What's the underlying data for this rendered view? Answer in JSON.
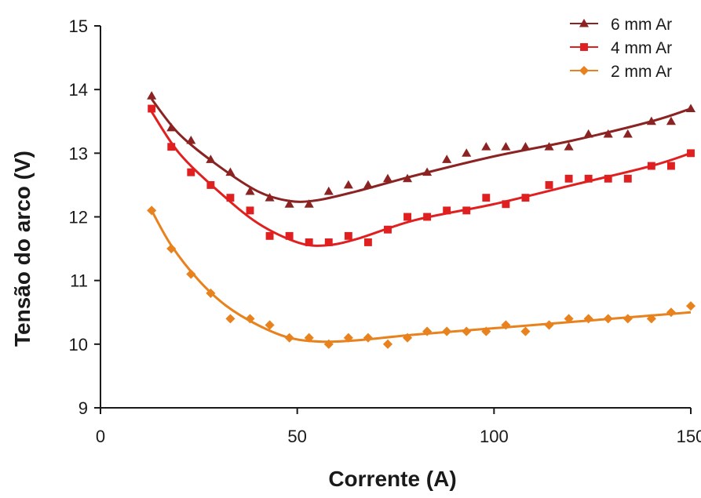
{
  "chart_data": {
    "type": "scatter",
    "xlabel": "Corrente (A)",
    "ylabel": "Tensão do arco (V)",
    "xlim": [
      0,
      150
    ],
    "ylim": [
      9,
      15
    ],
    "xticks": [
      0,
      50,
      100,
      150
    ],
    "yticks": [
      9,
      10,
      11,
      12,
      13,
      14,
      15
    ],
    "xtick_labels": [
      "0",
      "50",
      "100",
      "150"
    ],
    "ytick_labels": [
      "9",
      "10",
      "11",
      "12",
      "13",
      "14",
      "15"
    ],
    "grid": false,
    "legend_position": "top-right",
    "series": [
      {
        "name": "6 mm Ar",
        "color": "#8b2323",
        "marker": "triangle",
        "x": [
          13,
          18,
          23,
          28,
          33,
          38,
          43,
          48,
          53,
          58,
          63,
          68,
          73,
          78,
          83,
          88,
          93,
          98,
          103,
          108,
          114,
          119,
          124,
          129,
          134,
          140,
          145,
          150
        ],
        "y": [
          13.9,
          13.4,
          13.2,
          12.9,
          12.7,
          12.4,
          12.3,
          12.2,
          12.2,
          12.4,
          12.5,
          12.5,
          12.6,
          12.6,
          12.7,
          12.9,
          13.0,
          13.1,
          13.1,
          13.1,
          13.1,
          13.1,
          13.3,
          13.3,
          13.3,
          13.5,
          13.5,
          13.7
        ],
        "fit_x": [
          13,
          20,
          30,
          40,
          48,
          55,
          65,
          80,
          100,
          120,
          140,
          150
        ],
        "fit_y": [
          13.85,
          13.3,
          12.8,
          12.4,
          12.25,
          12.26,
          12.4,
          12.65,
          12.95,
          13.2,
          13.5,
          13.7
        ]
      },
      {
        "name": "4 mm Ar",
        "color": "#e02020",
        "marker": "square",
        "x": [
          13,
          18,
          23,
          28,
          33,
          38,
          43,
          48,
          53,
          58,
          63,
          68,
          73,
          78,
          83,
          88,
          93,
          98,
          103,
          108,
          114,
          119,
          124,
          129,
          134,
          140,
          145,
          150
        ],
        "y": [
          13.7,
          13.1,
          12.7,
          12.5,
          12.3,
          12.1,
          11.7,
          11.7,
          11.6,
          11.6,
          11.7,
          11.6,
          11.8,
          12.0,
          12.0,
          12.1,
          12.1,
          12.3,
          12.2,
          12.3,
          12.5,
          12.6,
          12.6,
          12.6,
          12.6,
          12.8,
          12.8,
          13.0
        ],
        "fit_x": [
          13,
          20,
          30,
          40,
          50,
          57,
          65,
          80,
          100,
          120,
          140,
          150
        ],
        "fit_y": [
          13.65,
          13.0,
          12.4,
          11.9,
          11.6,
          11.55,
          11.65,
          11.95,
          12.2,
          12.5,
          12.8,
          13.0
        ]
      },
      {
        "name": "2 mm Ar",
        "color": "#e8821e",
        "marker": "diamond",
        "x": [
          13,
          18,
          23,
          28,
          33,
          38,
          43,
          48,
          53,
          58,
          63,
          68,
          73,
          78,
          83,
          88,
          93,
          98,
          103,
          108,
          114,
          119,
          124,
          129,
          134,
          140,
          145,
          150
        ],
        "y": [
          12.1,
          11.5,
          11.1,
          10.8,
          10.4,
          10.4,
          10.3,
          10.1,
          10.1,
          10.0,
          10.1,
          10.1,
          10.0,
          10.1,
          10.2,
          10.2,
          10.2,
          10.2,
          10.3,
          10.2,
          10.3,
          10.4,
          10.4,
          10.4,
          10.4,
          10.4,
          10.5,
          10.6
        ],
        "fit_x": [
          13,
          18,
          25,
          32,
          40,
          48,
          56,
          65,
          80,
          100,
          120,
          150
        ],
        "fit_y": [
          12.1,
          11.55,
          11.0,
          10.6,
          10.3,
          10.1,
          10.04,
          10.06,
          10.15,
          10.25,
          10.35,
          10.5
        ]
      }
    ]
  }
}
